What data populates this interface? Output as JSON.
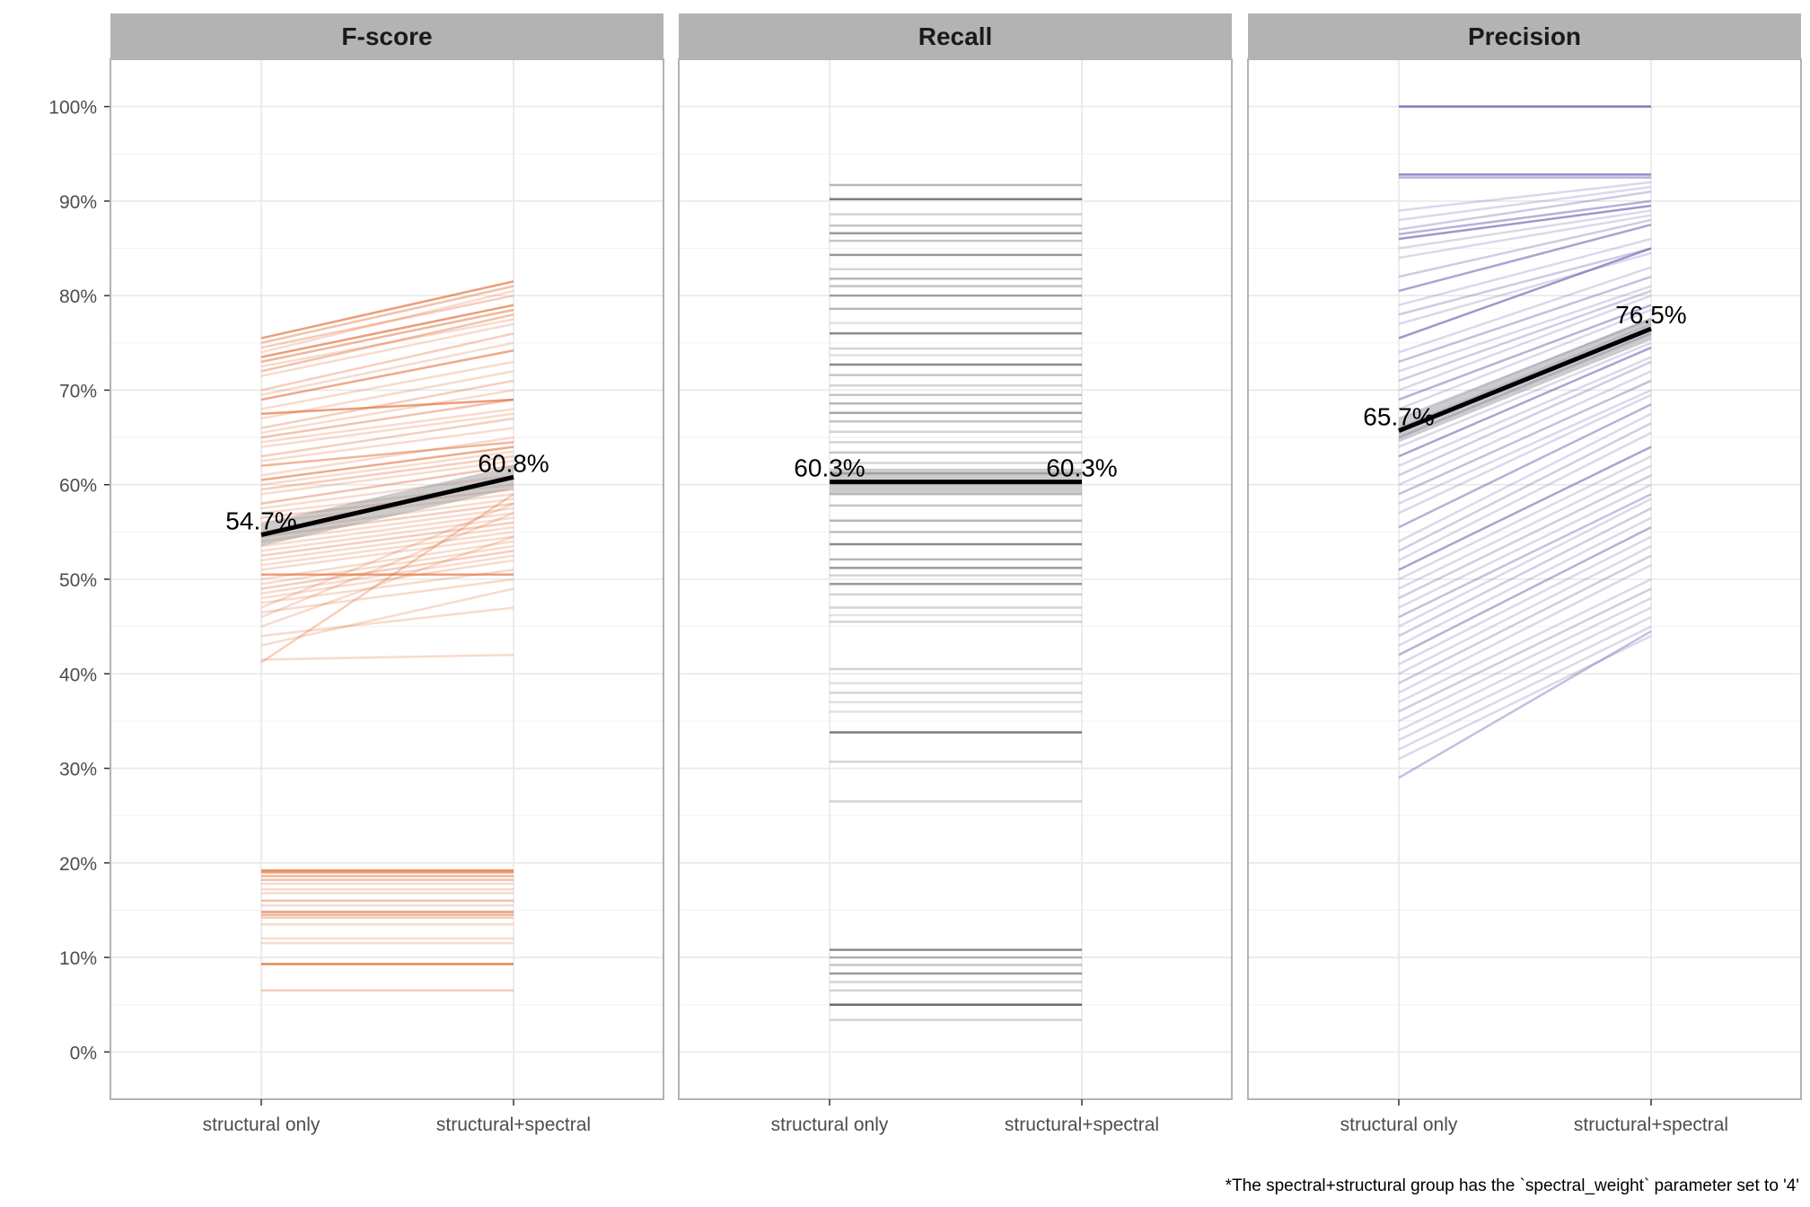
{
  "caption": "*The spectral+structural group has the `spectral_weight` parameter set to '4'",
  "chart_data": {
    "type": "line",
    "facets": [
      "F-score",
      "Recall",
      "Precision"
    ],
    "x_categories": [
      "structural only",
      "structural+spectral"
    ],
    "y_ticks": [
      "0%",
      "10%",
      "20%",
      "30%",
      "40%",
      "50%",
      "60%",
      "70%",
      "80%",
      "90%",
      "100%"
    ],
    "ylim": [
      -0.05,
      1.05
    ],
    "grid": true,
    "panels": [
      {
        "name": "F-score",
        "color": "#E2703A",
        "mean": {
          "values": [
            0.547,
            0.608
          ],
          "labels": [
            "54.7%",
            "60.8%"
          ],
          "ci": [
            0.012,
            0.012
          ]
        },
        "pairs": [
          [
            0.755,
            0.815,
            0.8
          ],
          [
            0.75,
            0.81,
            0.5
          ],
          [
            0.745,
            0.8,
            0.4
          ],
          [
            0.74,
            0.805,
            0.3
          ],
          [
            0.735,
            0.79,
            0.8
          ],
          [
            0.73,
            0.785,
            0.6
          ],
          [
            0.725,
            0.775,
            0.3
          ],
          [
            0.72,
            0.78,
            0.5
          ],
          [
            0.715,
            0.77,
            0.3
          ],
          [
            0.7,
            0.76,
            0.4
          ],
          [
            0.695,
            0.75,
            0.3
          ],
          [
            0.69,
            0.742,
            0.7
          ],
          [
            0.68,
            0.73,
            0.3
          ],
          [
            0.675,
            0.69,
            0.8
          ],
          [
            0.67,
            0.72,
            0.3
          ],
          [
            0.66,
            0.71,
            0.4
          ],
          [
            0.655,
            0.7,
            0.3
          ],
          [
            0.65,
            0.69,
            0.5
          ],
          [
            0.645,
            0.68,
            0.3
          ],
          [
            0.64,
            0.675,
            0.3
          ],
          [
            0.63,
            0.67,
            0.4
          ],
          [
            0.625,
            0.66,
            0.3
          ],
          [
            0.62,
            0.645,
            0.6
          ],
          [
            0.61,
            0.65,
            0.3
          ],
          [
            0.605,
            0.64,
            0.7
          ],
          [
            0.6,
            0.635,
            0.3
          ],
          [
            0.595,
            0.63,
            0.4
          ],
          [
            0.59,
            0.625,
            0.3
          ],
          [
            0.58,
            0.62,
            0.5
          ],
          [
            0.575,
            0.61,
            0.3
          ],
          [
            0.57,
            0.6,
            0.3
          ],
          [
            0.565,
            0.595,
            0.4
          ],
          [
            0.56,
            0.59,
            0.3
          ],
          [
            0.55,
            0.585,
            0.3
          ],
          [
            0.545,
            0.58,
            0.4
          ],
          [
            0.54,
            0.575,
            0.3
          ],
          [
            0.535,
            0.57,
            0.3
          ],
          [
            0.53,
            0.565,
            0.3
          ],
          [
            0.525,
            0.56,
            0.4
          ],
          [
            0.52,
            0.555,
            0.3
          ],
          [
            0.515,
            0.55,
            0.3
          ],
          [
            0.51,
            0.545,
            0.3
          ],
          [
            0.505,
            0.505,
            0.8
          ],
          [
            0.5,
            0.54,
            0.3
          ],
          [
            0.495,
            0.535,
            0.3
          ],
          [
            0.49,
            0.53,
            0.4
          ],
          [
            0.485,
            0.525,
            0.3
          ],
          [
            0.48,
            0.52,
            0.3
          ],
          [
            0.475,
            0.51,
            0.3
          ],
          [
            0.47,
            0.58,
            0.3
          ],
          [
            0.465,
            0.5,
            0.3
          ],
          [
            0.46,
            0.57,
            0.3
          ],
          [
            0.45,
            0.545,
            0.3
          ],
          [
            0.44,
            0.47,
            0.3
          ],
          [
            0.43,
            0.49,
            0.3
          ],
          [
            0.415,
            0.42,
            0.3
          ],
          [
            0.412,
            0.59,
            0.4
          ],
          [
            0.192,
            0.192,
            0.9
          ],
          [
            0.19,
            0.19,
            0.8
          ],
          [
            0.186,
            0.186,
            0.6
          ],
          [
            0.182,
            0.182,
            0.5
          ],
          [
            0.178,
            0.178,
            0.3
          ],
          [
            0.172,
            0.172,
            0.3
          ],
          [
            0.168,
            0.168,
            0.3
          ],
          [
            0.16,
            0.16,
            0.5
          ],
          [
            0.155,
            0.155,
            0.3
          ],
          [
            0.148,
            0.148,
            0.8
          ],
          [
            0.145,
            0.145,
            0.6
          ],
          [
            0.142,
            0.142,
            0.4
          ],
          [
            0.135,
            0.135,
            0.3
          ],
          [
            0.12,
            0.12,
            0.3
          ],
          [
            0.115,
            0.115,
            0.3
          ],
          [
            0.093,
            0.093,
            1.0
          ],
          [
            0.065,
            0.065,
            0.4
          ]
        ]
      },
      {
        "name": "Recall",
        "color": "#555555",
        "mean": {
          "values": [
            0.603,
            0.603
          ],
          "labels": [
            "60.3%",
            "60.3%"
          ],
          "ci": [
            0.014,
            0.014
          ]
        },
        "pairs": [
          [
            0.917,
            0.917,
            0.5
          ],
          [
            0.902,
            0.902,
            0.9
          ],
          [
            0.886,
            0.886,
            0.3
          ],
          [
            0.874,
            0.874,
            0.4
          ],
          [
            0.866,
            0.866,
            0.7
          ],
          [
            0.858,
            0.858,
            0.4
          ],
          [
            0.843,
            0.843,
            0.7
          ],
          [
            0.828,
            0.828,
            0.3
          ],
          [
            0.818,
            0.818,
            0.5
          ],
          [
            0.81,
            0.81,
            0.4
          ],
          [
            0.8,
            0.8,
            0.6
          ],
          [
            0.786,
            0.786,
            0.5
          ],
          [
            0.771,
            0.771,
            0.2
          ],
          [
            0.76,
            0.76,
            0.8
          ],
          [
            0.744,
            0.744,
            0.3
          ],
          [
            0.737,
            0.737,
            0.2
          ],
          [
            0.727,
            0.727,
            0.8
          ],
          [
            0.716,
            0.716,
            0.4
          ],
          [
            0.705,
            0.705,
            0.3
          ],
          [
            0.695,
            0.695,
            0.4
          ],
          [
            0.686,
            0.686,
            0.5
          ],
          [
            0.676,
            0.676,
            0.6
          ],
          [
            0.667,
            0.667,
            0.4
          ],
          [
            0.656,
            0.656,
            0.3
          ],
          [
            0.645,
            0.645,
            0.3
          ],
          [
            0.634,
            0.634,
            0.4
          ],
          [
            0.623,
            0.623,
            0.3
          ],
          [
            0.612,
            0.612,
            0.6
          ],
          [
            0.59,
            0.59,
            0.3
          ],
          [
            0.578,
            0.578,
            0.4
          ],
          [
            0.562,
            0.562,
            0.5
          ],
          [
            0.55,
            0.55,
            0.4
          ],
          [
            0.537,
            0.537,
            0.8
          ],
          [
            0.521,
            0.521,
            0.5
          ],
          [
            0.512,
            0.512,
            0.7
          ],
          [
            0.504,
            0.504,
            0.3
          ],
          [
            0.495,
            0.495,
            0.7
          ],
          [
            0.484,
            0.484,
            0.3
          ],
          [
            0.47,
            0.47,
            0.3
          ],
          [
            0.462,
            0.462,
            0.2
          ],
          [
            0.455,
            0.455,
            0.3
          ],
          [
            0.405,
            0.405,
            0.3
          ],
          [
            0.39,
            0.39,
            0.2
          ],
          [
            0.38,
            0.38,
            0.3
          ],
          [
            0.37,
            0.37,
            0.2
          ],
          [
            0.36,
            0.36,
            0.2
          ],
          [
            0.338,
            0.338,
            0.9
          ],
          [
            0.307,
            0.307,
            0.3
          ],
          [
            0.265,
            0.265,
            0.3
          ],
          [
            0.108,
            0.108,
            0.8
          ],
          [
            0.1,
            0.1,
            0.5
          ],
          [
            0.092,
            0.092,
            0.4
          ],
          [
            0.083,
            0.083,
            0.7
          ],
          [
            0.074,
            0.074,
            0.3
          ],
          [
            0.065,
            0.065,
            0.3
          ],
          [
            0.05,
            0.05,
            1.0
          ],
          [
            0.034,
            0.034,
            0.3
          ]
        ]
      },
      {
        "name": "Precision",
        "color": "#6F67B3",
        "mean": {
          "values": [
            0.657,
            0.765
          ],
          "labels": [
            "65.7%",
            "76.5%"
          ],
          "ci": [
            0.012,
            0.012
          ]
        },
        "pairs": [
          [
            1.0,
            1.0,
            1.0
          ],
          [
            0.928,
            0.928,
            0.9
          ],
          [
            0.925,
            0.925,
            0.6
          ],
          [
            0.89,
            0.92,
            0.3
          ],
          [
            0.88,
            0.915,
            0.3
          ],
          [
            0.87,
            0.91,
            0.4
          ],
          [
            0.865,
            0.9,
            0.6
          ],
          [
            0.86,
            0.895,
            0.8
          ],
          [
            0.85,
            0.89,
            0.3
          ],
          [
            0.84,
            0.885,
            0.3
          ],
          [
            0.82,
            0.88,
            0.4
          ],
          [
            0.805,
            0.875,
            0.7
          ],
          [
            0.79,
            0.86,
            0.3
          ],
          [
            0.78,
            0.85,
            0.4
          ],
          [
            0.77,
            0.845,
            0.3
          ],
          [
            0.755,
            0.85,
            0.8
          ],
          [
            0.74,
            0.83,
            0.3
          ],
          [
            0.73,
            0.82,
            0.5
          ],
          [
            0.72,
            0.81,
            0.3
          ],
          [
            0.71,
            0.805,
            0.4
          ],
          [
            0.7,
            0.8,
            0.3
          ],
          [
            0.69,
            0.79,
            0.6
          ],
          [
            0.68,
            0.785,
            0.3
          ],
          [
            0.67,
            0.775,
            0.4
          ],
          [
            0.66,
            0.77,
            0.3
          ],
          [
            0.65,
            0.76,
            0.5
          ],
          [
            0.64,
            0.75,
            0.3
          ],
          [
            0.63,
            0.745,
            0.7
          ],
          [
            0.62,
            0.735,
            0.3
          ],
          [
            0.61,
            0.73,
            0.4
          ],
          [
            0.6,
            0.72,
            0.3
          ],
          [
            0.59,
            0.71,
            0.5
          ],
          [
            0.58,
            0.7,
            0.3
          ],
          [
            0.57,
            0.695,
            0.3
          ],
          [
            0.555,
            0.685,
            0.6
          ],
          [
            0.54,
            0.675,
            0.3
          ],
          [
            0.53,
            0.665,
            0.4
          ],
          [
            0.52,
            0.655,
            0.3
          ],
          [
            0.51,
            0.64,
            0.7
          ],
          [
            0.5,
            0.63,
            0.3
          ],
          [
            0.49,
            0.62,
            0.3
          ],
          [
            0.48,
            0.61,
            0.4
          ],
          [
            0.47,
            0.6,
            0.3
          ],
          [
            0.46,
            0.59,
            0.5
          ],
          [
            0.45,
            0.585,
            0.3
          ],
          [
            0.44,
            0.575,
            0.4
          ],
          [
            0.43,
            0.565,
            0.3
          ],
          [
            0.42,
            0.555,
            0.6
          ],
          [
            0.41,
            0.545,
            0.3
          ],
          [
            0.4,
            0.535,
            0.3
          ],
          [
            0.39,
            0.525,
            0.4
          ],
          [
            0.38,
            0.515,
            0.3
          ],
          [
            0.37,
            0.5,
            0.3
          ],
          [
            0.36,
            0.49,
            0.4
          ],
          [
            0.35,
            0.48,
            0.3
          ],
          [
            0.34,
            0.47,
            0.3
          ],
          [
            0.33,
            0.46,
            0.3
          ],
          [
            0.32,
            0.45,
            0.3
          ],
          [
            0.31,
            0.44,
            0.3
          ],
          [
            0.29,
            0.445,
            0.5
          ]
        ]
      }
    ]
  }
}
